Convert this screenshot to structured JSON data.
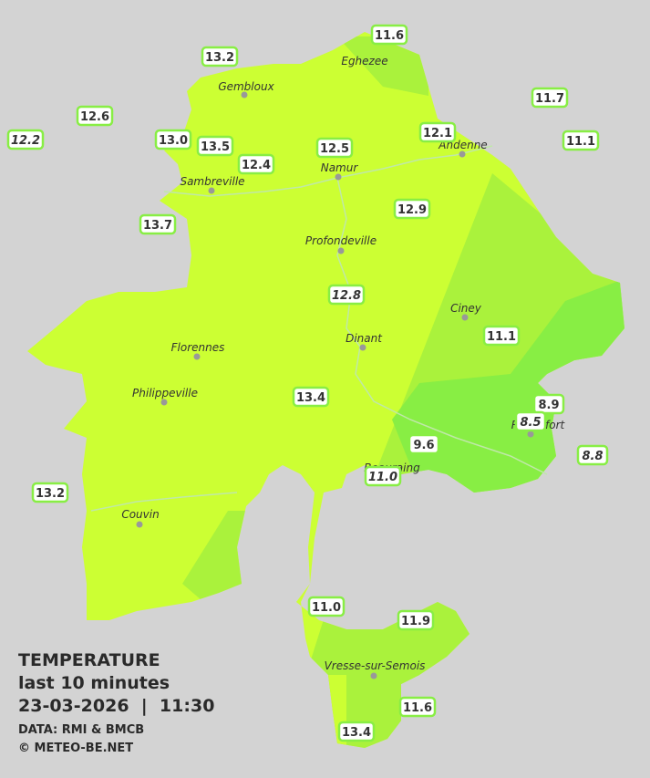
{
  "title": {
    "heading": "TEMPERATURE",
    "period": "last 10 minutes",
    "datetime": "23-03-2026  |  11:30",
    "source": "DATA: RMI & BMCB",
    "credit": "© METEO-BE.NET"
  },
  "cities": [
    "Eghezee",
    "Gembloux",
    "Andenne",
    "Namur",
    "Sambreville",
    "Profondeville",
    "Ciney",
    "Dinant",
    "Florennes",
    "Philippeville",
    "Rochefort",
    "Beauraing",
    "Couvin",
    "Vresse-sur-Semois"
  ],
  "stations": [
    {
      "label": "13.2"
    },
    {
      "label": "11.6"
    },
    {
      "label": "11.7"
    },
    {
      "label": "12.6"
    },
    {
      "label": "12.2",
      "italic": true
    },
    {
      "label": "13.0"
    },
    {
      "label": "13.5"
    },
    {
      "label": "12.4"
    },
    {
      "label": "12.5"
    },
    {
      "label": "12.1"
    },
    {
      "label": "11.1"
    },
    {
      "label": "13.7"
    },
    {
      "label": "12.9"
    },
    {
      "label": "12.8",
      "italic": true
    },
    {
      "label": "11.1"
    },
    {
      "label": "13.4"
    },
    {
      "label": "8.9"
    },
    {
      "label": "8.5",
      "italic": true
    },
    {
      "label": "9.6"
    },
    {
      "label": "8.8",
      "italic": true
    },
    {
      "label": "11.0",
      "italic": true
    },
    {
      "label": "13.2"
    },
    {
      "label": "11.0"
    },
    {
      "label": "11.9"
    },
    {
      "label": "11.6"
    },
    {
      "label": "13.4"
    }
  ]
}
